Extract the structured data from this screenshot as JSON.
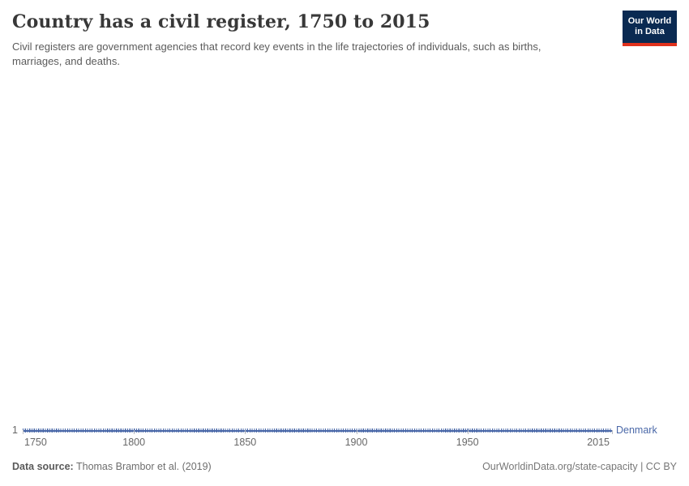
{
  "header": {
    "title": "Country has a civil register, 1750 to 2015",
    "subtitle": "Civil registers are government agencies that record key events in the life trajectories of individuals, such as births, marriages, and deaths."
  },
  "logo": {
    "line1": "Our World",
    "line2": "in Data",
    "bg_color": "#0a2a52",
    "stripe_color": "#e0311c"
  },
  "chart_data": {
    "type": "line",
    "title": "Country has a civil register, 1750 to 2015",
    "xlabel": "",
    "ylabel": "",
    "xlim": [
      1750,
      2015
    ],
    "x_ticks": [
      1750,
      1800,
      1850,
      1900,
      1950,
      2015
    ],
    "y_ticks": [
      1
    ],
    "grid": false,
    "legend_position": "end-of-line label",
    "series": [
      {
        "name": "Denmark",
        "color": "#4a68a8",
        "x_start": 1750,
        "x_end": 2015,
        "x_step": 1,
        "constant_value": 1,
        "note": "Value equals 1 (country has a civil register) for every year from 1750 through 2015; flat line with yearly point markers."
      }
    ]
  },
  "footer": {
    "source_label": "Data source:",
    "source_value": " Thomas Brambor et al. (2019)",
    "credit": "OurWorldinData.org/state-capacity | CC BY"
  }
}
